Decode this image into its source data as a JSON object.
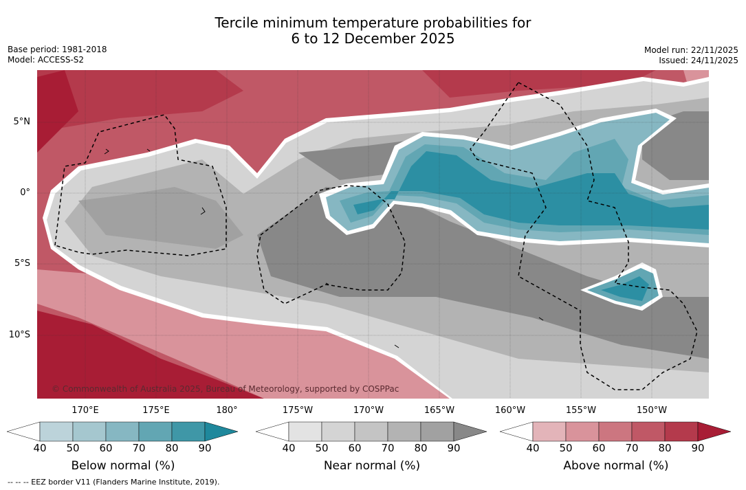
{
  "title": {
    "line1": "Tercile minimum temperature probabilities for",
    "line2": "6 to 12 December 2025"
  },
  "meta_left": {
    "base_period": "Base period: 1981-2018",
    "model": "Model: ACCESS-S2"
  },
  "meta_right": {
    "model_run": "Model run: 22/11/2025",
    "issued": "Issued: 24/11/2025"
  },
  "lat_labels": [
    "5°N",
    "0°",
    "5°S",
    "10°S"
  ],
  "lon_labels": [
    "170°E",
    "175°E",
    "180°",
    "175°W",
    "170°W",
    "165°W",
    "160°W",
    "155°W",
    "150°W"
  ],
  "copyright": "© Commonwealth of Australia 2025, Bureau of Meteorology, supported by COSPPac",
  "colorbars": [
    {
      "title": "Below normal (%)",
      "ticks": [
        "40",
        "50",
        "60",
        "70",
        "80",
        "90"
      ],
      "colors": [
        "#ffffff",
        "#bcd3da",
        "#a5c7cf",
        "#86b7c2",
        "#62a6b3",
        "#3f97a7",
        "#1f889c"
      ]
    },
    {
      "title": "Near normal (%)",
      "ticks": [
        "40",
        "50",
        "60",
        "70",
        "80",
        "90"
      ],
      "colors": [
        "#ffffff",
        "#e3e3e3",
        "#d4d4d4",
        "#c4c4c4",
        "#b3b3b3",
        "#a1a1a1",
        "#888888"
      ]
    },
    {
      "title": "Above normal (%)",
      "ticks": [
        "40",
        "50",
        "60",
        "70",
        "80",
        "90"
      ],
      "colors": [
        "#ffffff",
        "#e3b4b9",
        "#d9939b",
        "#cc7680",
        "#c05866",
        "#b43a4c",
        "#a81d35"
      ]
    }
  ],
  "footer": "-- -- -- EEZ border V11 (Flanders Marine Institute, 2019)."
}
